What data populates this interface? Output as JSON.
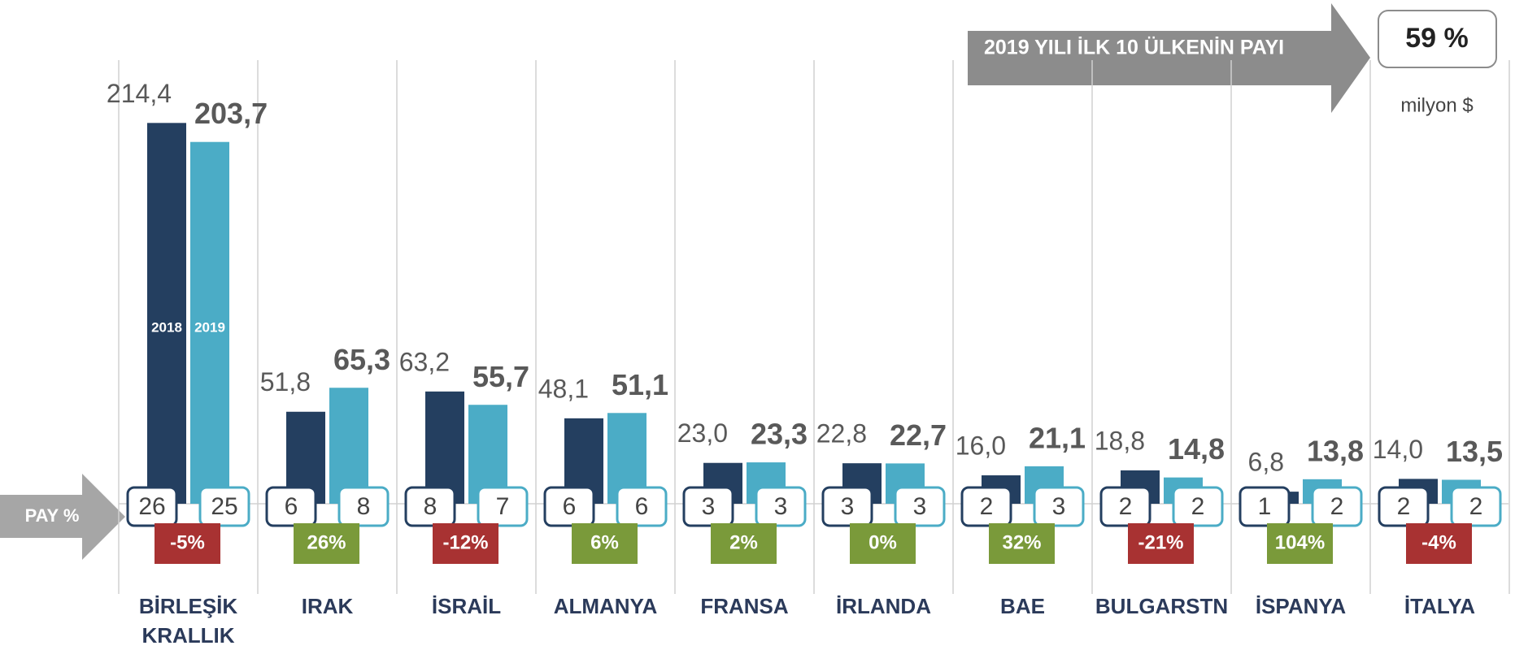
{
  "chart_data": {
    "type": "bar",
    "title": "2019 YILI İLK 10 ÜLKENİN PAYI",
    "total_share": {
      "value": 59,
      "label": "59 %"
    },
    "unit": "milyon $",
    "share_label": "PAY %",
    "categories": [
      "BİRLEŞİK KRALLIK",
      "IRAK",
      "İSRAİL",
      "ALMANYA",
      "FRANSA",
      "İRLANDA",
      "BAE",
      "BULGARSTN",
      "İSPANYA",
      "İTALYA"
    ],
    "series": [
      {
        "name": "2018",
        "color": "#243f60",
        "values": [
          214.4,
          51.8,
          63.2,
          48.1,
          23.0,
          22.8,
          16.0,
          18.8,
          6.8,
          14.0
        ],
        "value_labels": [
          "214,4",
          "51,8",
          "63,2",
          "48,1",
          "23,0",
          "22,8",
          "16,0",
          "18,8",
          "6,8",
          "14,0"
        ],
        "shares": [
          26,
          6,
          8,
          6,
          3,
          3,
          2,
          2,
          1,
          2
        ]
      },
      {
        "name": "2019",
        "color": "#4bacc6",
        "values": [
          203.7,
          65.3,
          55.7,
          51.1,
          23.3,
          22.7,
          21.1,
          14.8,
          13.8,
          13.5
        ],
        "value_labels": [
          "203,7",
          "65,3",
          "55,7",
          "51,1",
          "23,3",
          "22,7",
          "21,1",
          "14,8",
          "13,8",
          "13,5"
        ],
        "shares": [
          25,
          8,
          7,
          6,
          3,
          3,
          3,
          2,
          2,
          2
        ]
      }
    ],
    "change": {
      "values": [
        -5,
        26,
        -12,
        6,
        2,
        0,
        32,
        -21,
        104,
        -4
      ],
      "value_labels": [
        "-5%",
        "26%",
        "-12%",
        "6%",
        "2%",
        "0%",
        "32%",
        "-21%",
        "104%",
        "-4%"
      ],
      "positive_color": "#7a9a3a",
      "negative_color": "#a83232"
    }
  }
}
